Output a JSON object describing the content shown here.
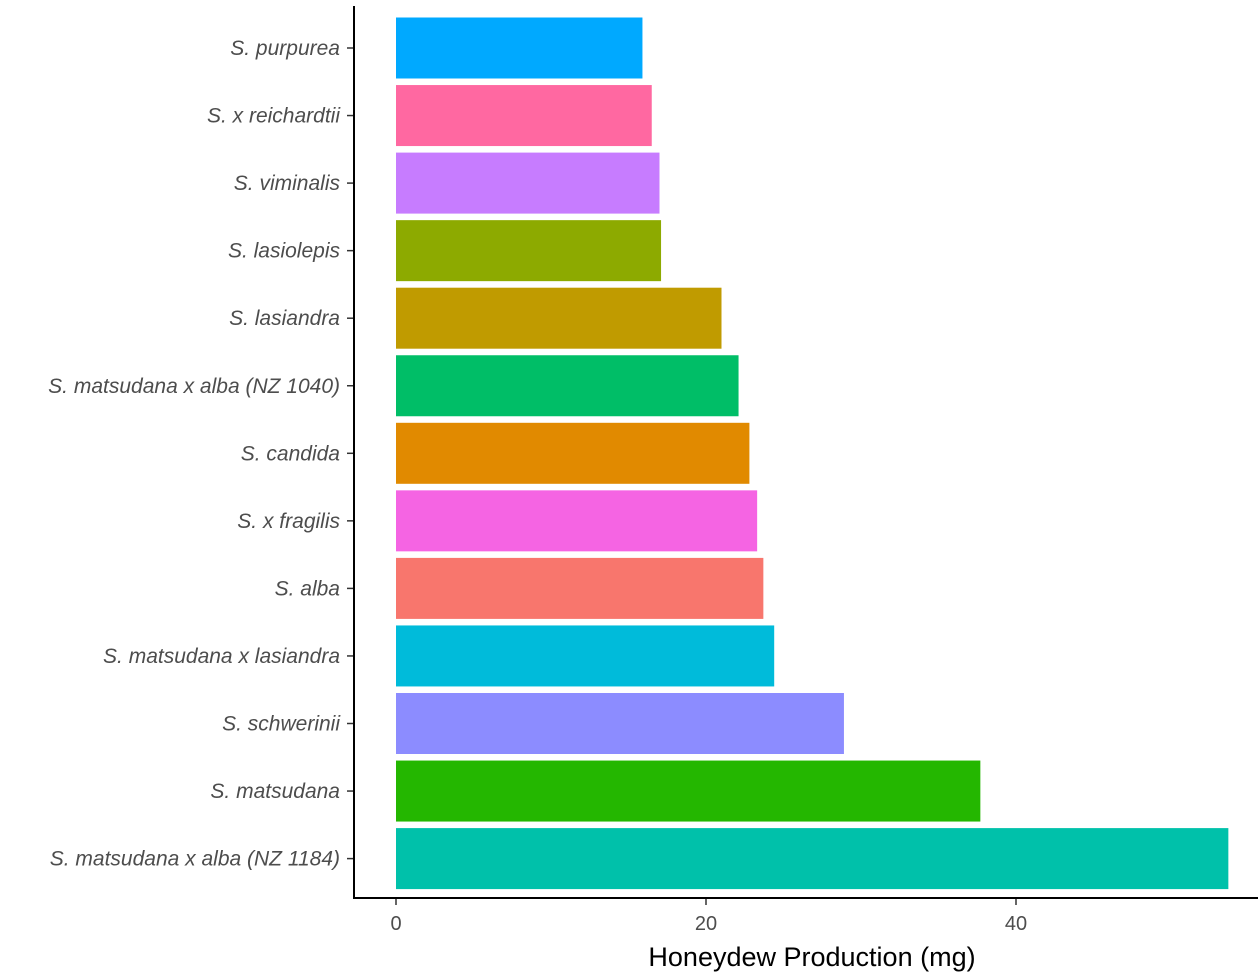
{
  "chart_data": {
    "type": "bar",
    "orientation": "horizontal",
    "title": "",
    "xlabel": "Honeydew Production (mg)",
    "ylabel": "",
    "xlim": [
      0,
      53.7
    ],
    "xticks": [
      0,
      20,
      40
    ],
    "grid": false,
    "legend": "none",
    "categories": [
      "S. purpurea",
      "S. x reichardtii",
      "S. viminalis",
      "S. lasiolepis",
      "S. lasiandra",
      "S. matsudana x alba (NZ 1040)",
      "S. candida",
      "S. x fragilis",
      "S. alba",
      "S. matsudana x lasiandra",
      "S. schwerinii",
      "S. matsudana",
      "S. matsudana x alba (NZ 1184)"
    ],
    "values": [
      15.9,
      16.5,
      17.0,
      17.1,
      21.0,
      22.1,
      22.8,
      23.3,
      23.7,
      24.4,
      28.9,
      37.7,
      53.7
    ],
    "colors": [
      "#00A9FF",
      "#FF68A1",
      "#C77CFF",
      "#8DAA00",
      "#C09B00",
      "#00BE67",
      "#E18A00",
      "#F564E3",
      "#F8766D",
      "#00BBDA",
      "#8C8CFF",
      "#24B700",
      "#00C1AA"
    ]
  }
}
